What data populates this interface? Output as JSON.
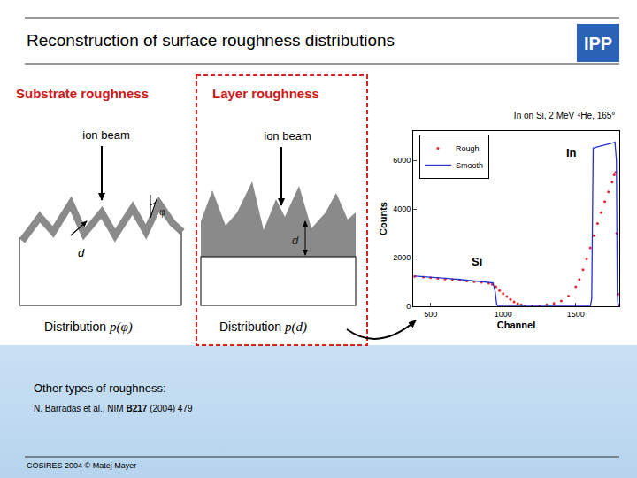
{
  "header": {
    "title": "Reconstruction of surface roughness distributions",
    "logo": "IPP"
  },
  "panels": [
    {
      "title": "Substrate roughness",
      "beam_label": "ion beam",
      "angle_label": "φ",
      "depth_label": "d",
      "distribution": "Distribution",
      "formula": "p(φ)"
    },
    {
      "title": "Layer roughness",
      "beam_label": "ion beam",
      "depth_label": "d",
      "distribution": "Distribution",
      "formula": "p(d)"
    }
  ],
  "chart_data": {
    "type": "scatter",
    "title": "In on Si, 2 MeV ⁴He, 165°",
    "x_label": "Channel",
    "y_label": "Counts",
    "xlim": [
      380,
      1800
    ],
    "xticks": [
      500,
      1000,
      1500
    ],
    "ylim": [
      0,
      7200
    ],
    "yticks": [
      0,
      2000,
      4000,
      6000
    ],
    "grid": false,
    "legend": "upper left",
    "series": [
      {
        "name": "Rough",
        "type": "scatter",
        "marker": "circle",
        "color": "#e8262b",
        "x": [
          390,
          450,
          500,
          550,
          600,
          650,
          700,
          750,
          800,
          850,
          900,
          925,
          950,
          975,
          1000,
          1025,
          1050,
          1075,
          1100,
          1125,
          1150,
          1200,
          1250,
          1300,
          1350,
          1400,
          1450,
          1500,
          1525,
          1550,
          1575,
          1600,
          1625,
          1650,
          1675,
          1700,
          1725,
          1750,
          1765,
          1775,
          1782,
          1790,
          1795
        ],
        "values": [
          1230,
          1200,
          1170,
          1150,
          1120,
          1100,
          1070,
          1040,
          1010,
          980,
          950,
          900,
          800,
          650,
          520,
          400,
          280,
          180,
          110,
          60,
          30,
          20,
          30,
          60,
          120,
          220,
          420,
          800,
          1100,
          1500,
          1950,
          2400,
          2900,
          3400,
          3850,
          4300,
          4700,
          5100,
          5400,
          5500,
          3000,
          500,
          50
        ]
      },
      {
        "name": "Smooth",
        "type": "line",
        "line_style": "solid",
        "color": "#2233cc",
        "x": [
          390,
          450,
          500,
          600,
          700,
          800,
          900,
          930,
          945,
          955,
          965,
          1600,
          1610,
          1620,
          1650,
          1700,
          1750,
          1770,
          1780,
          1786,
          1792
        ],
        "values": [
          1240,
          1220,
          1200,
          1150,
          1100,
          1040,
          980,
          960,
          600,
          100,
          0,
          0,
          300,
          6500,
          6550,
          6620,
          6700,
          6750,
          6000,
          500,
          0
        ]
      }
    ],
    "annotations": [
      {
        "text": "In",
        "x": 1470,
        "y": 6300
      },
      {
        "text": "Si",
        "x": 820,
        "y": 1850
      }
    ]
  },
  "other": {
    "heading": "Other types of roughness:",
    "reference": [
      {
        "text": "N. Barradas et al., NIM ",
        "bold": false
      },
      {
        "text": "B217",
        "bold": true
      },
      {
        "text": " (2004) 479",
        "bold": false
      }
    ]
  },
  "footer": "COSIRES 2004 © Matej Mayer"
}
